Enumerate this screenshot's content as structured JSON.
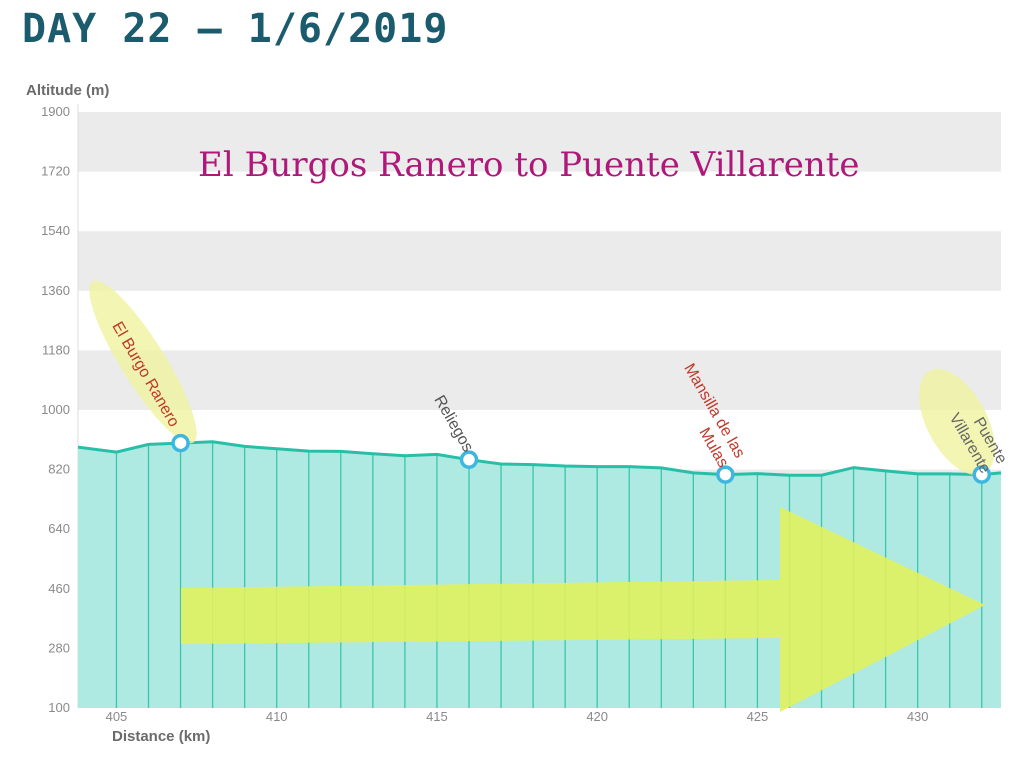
{
  "page_title": "DAY 22 — 1/6/2019",
  "chart_data": {
    "type": "area",
    "title": "El Burgos Ranero to Puente Villarente",
    "xlabel": "Distance (km)",
    "ylabel": "Altitude (m)",
    "xlim": [
      403.8,
      432.6
    ],
    "ylim": [
      100,
      1900
    ],
    "x_ticks": [
      405,
      410,
      415,
      420,
      425,
      430
    ],
    "y_ticks": [
      100,
      280,
      460,
      640,
      820,
      1000,
      1180,
      1360,
      1540,
      1720,
      1900
    ],
    "grid": "horizontal bands",
    "x": [
      403.8,
      405,
      406,
      407,
      408,
      409,
      410,
      411,
      412,
      413,
      414,
      415,
      416,
      417,
      418,
      419,
      420,
      421,
      422,
      423,
      424,
      425,
      426,
      427,
      428,
      429,
      430,
      431,
      432,
      432.6
    ],
    "y": [
      888,
      873,
      896,
      900,
      904,
      890,
      883,
      876,
      875,
      868,
      862,
      866,
      850,
      837,
      835,
      831,
      829,
      829,
      825,
      810,
      805,
      808,
      803,
      803,
      826,
      816,
      807,
      807,
      805,
      810
    ],
    "waypoints": [
      {
        "name": "El Burgo Ranero",
        "x": 407,
        "y": 900,
        "color": "#c0392b"
      },
      {
        "name": "Reliegos",
        "x": 416,
        "y": 850,
        "color": "#555555"
      },
      {
        "name": "Mansilla de las Mulas",
        "x": 424,
        "y": 805,
        "color": "#c0392b"
      },
      {
        "name": "Puente Villarente",
        "x": 432,
        "y": 805,
        "color": "#666666"
      }
    ],
    "colors": {
      "fill": "#aeeae2",
      "line": "#27bfa7",
      "marker": "#3db6e0",
      "arrow": "#e2f15a",
      "band": "#ebebeb"
    }
  }
}
